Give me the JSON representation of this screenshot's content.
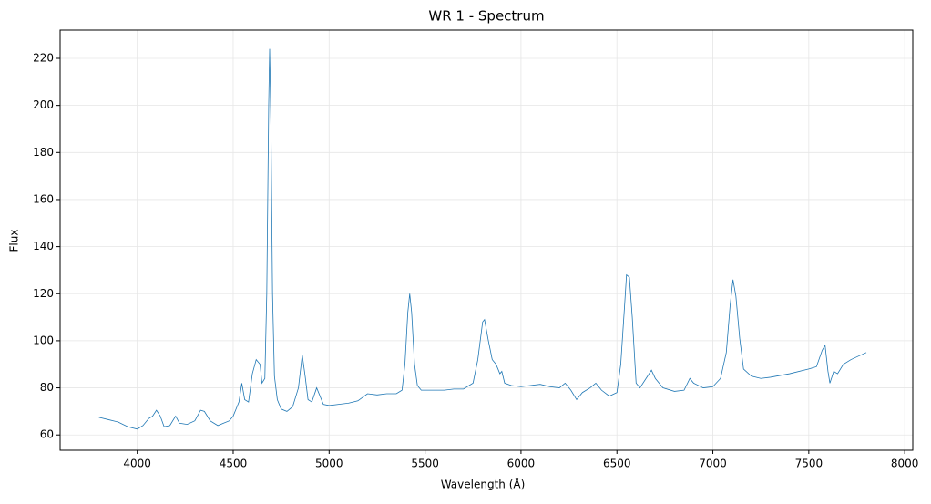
{
  "chart_data": {
    "type": "line",
    "title": "WR 1 - Spectrum",
    "xlabel": "Wavelength (Å)",
    "ylabel": "Flux",
    "x": [
      3800,
      3850,
      3900,
      3950,
      4000,
      4030,
      4060,
      4080,
      4100,
      4120,
      4140,
      4170,
      4200,
      4220,
      4260,
      4300,
      4330,
      4350,
      4380,
      4420,
      4450,
      4480,
      4500,
      4530,
      4545,
      4560,
      4580,
      4600,
      4620,
      4640,
      4650,
      4665,
      4675,
      4685,
      4690,
      4697,
      4705,
      4715,
      4730,
      4750,
      4780,
      4810,
      4840,
      4860,
      4875,
      4890,
      4910,
      4935,
      4950,
      4970,
      5000,
      5050,
      5100,
      5150,
      5200,
      5250,
      5300,
      5350,
      5380,
      5395,
      5410,
      5420,
      5430,
      5445,
      5460,
      5480,
      5550,
      5600,
      5650,
      5700,
      5750,
      5775,
      5800,
      5810,
      5830,
      5850,
      5870,
      5890,
      5900,
      5915,
      5950,
      6000,
      6100,
      6150,
      6200,
      6230,
      6260,
      6290,
      6320,
      6360,
      6390,
      6420,
      6460,
      6500,
      6520,
      6540,
      6550,
      6565,
      6580,
      6600,
      6620,
      6660,
      6680,
      6700,
      6740,
      6800,
      6850,
      6880,
      6900,
      6950,
      7000,
      7040,
      7070,
      7090,
      7105,
      7120,
      7140,
      7160,
      7200,
      7250,
      7300,
      7400,
      7500,
      7540,
      7570,
      7585,
      7600,
      7610,
      7630,
      7650,
      7680,
      7720,
      7760,
      7800
    ],
    "series": [
      {
        "name": "WR 1",
        "color": "#1f77b4",
        "values": [
          67.5,
          66.5,
          65.5,
          63.5,
          62.5,
          64,
          67,
          68,
          70.5,
          68,
          63.5,
          64,
          68,
          65,
          64.5,
          66,
          70.5,
          70,
          66,
          64,
          65,
          66,
          68,
          74,
          82,
          75,
          74,
          86,
          92,
          90,
          82,
          84,
          120,
          200,
          224,
          190,
          120,
          85,
          75,
          71,
          70,
          72,
          80,
          94,
          85,
          75,
          74,
          80,
          77,
          73,
          72.5,
          73,
          73.5,
          74.5,
          77.5,
          77,
          77.5,
          77.5,
          79,
          90,
          112,
          120,
          112,
          90,
          81,
          79,
          79,
          79,
          79.5,
          79.5,
          82,
          92,
          108,
          109,
          100,
          92,
          90,
          86,
          87,
          82,
          81,
          80.5,
          81.5,
          80.5,
          80,
          82,
          79,
          75,
          78,
          80,
          82,
          79,
          76.5,
          78,
          90,
          115,
          128,
          127,
          110,
          82,
          80,
          85,
          87.5,
          84,
          80,
          78.5,
          79,
          84,
          82,
          80,
          80.5,
          84,
          95,
          115,
          126,
          119,
          101,
          88,
          85,
          84,
          84.5,
          86,
          88,
          89,
          96,
          98,
          87,
          82,
          87,
          86,
          90,
          92,
          93.5,
          95
        ]
      }
    ],
    "xlim": [
      3598,
      8042
    ],
    "ylim": [
      53.5,
      232
    ],
    "xticks": [
      4000,
      4500,
      5000,
      5500,
      6000,
      6500,
      7000,
      7500,
      8000
    ],
    "yticks": [
      60,
      80,
      100,
      120,
      140,
      160,
      180,
      200,
      220
    ],
    "grid": true
  }
}
